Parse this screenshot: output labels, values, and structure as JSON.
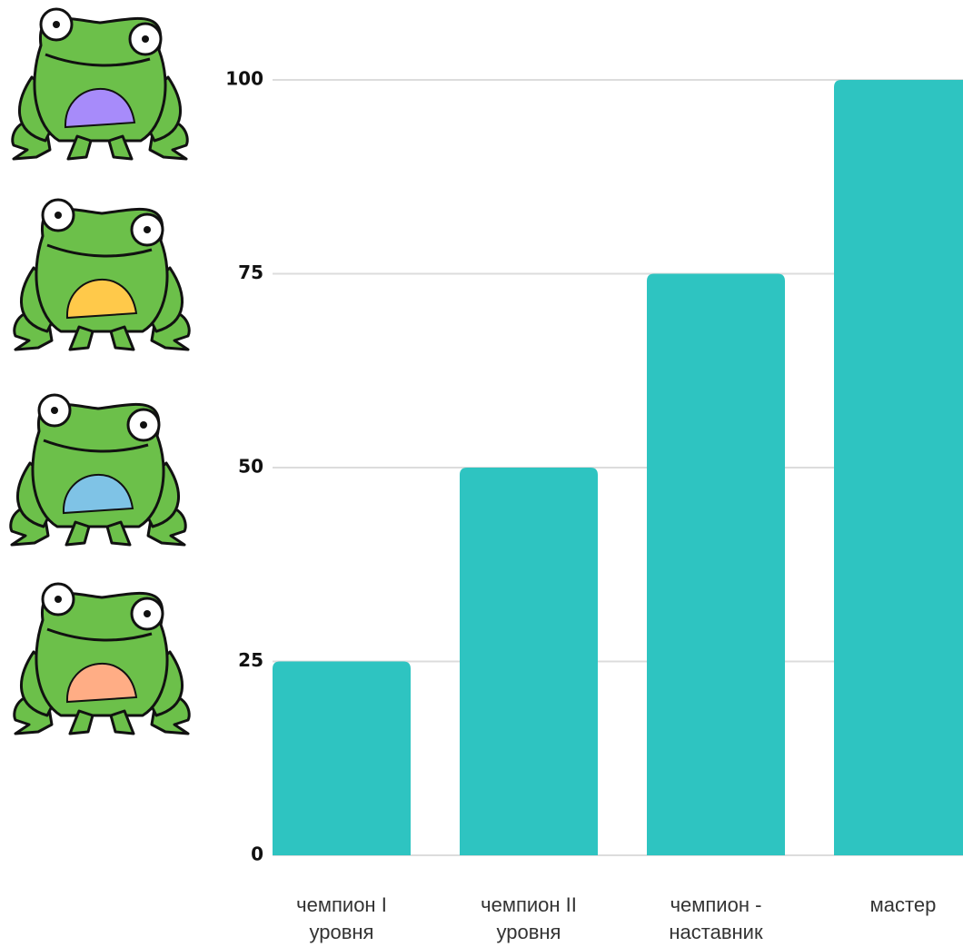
{
  "chart_data": {
    "type": "bar",
    "categories": [
      "чемпион I уровня",
      "чемпион II уровня",
      "чемпион - наставник",
      "мастер"
    ],
    "values": [
      25,
      50,
      75,
      100
    ],
    "color": "#2ec4c1",
    "ylim": [
      0,
      100
    ],
    "yticks": [
      0,
      25,
      50,
      75,
      100
    ],
    "grid": true
  }
}
